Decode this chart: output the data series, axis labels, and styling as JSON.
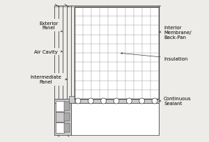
{
  "bg_color": "#eeece8",
  "line_color": "#3a3a3a",
  "grid_color": "#999999",
  "white": "#ffffff",
  "gray_light": "#cccccc",
  "gray_med": "#aaaaaa",
  "labels": {
    "exterior_panel": "Exterior\nPanel",
    "air_cavity": "Air Cavity",
    "intermediate_panel": "Intermediate\nPanel",
    "interior_membrane": "Interior\nMembrane/\nBack-Pan",
    "insulation": "Insulation",
    "continuous_sealant": "Continuous\nSealant"
  },
  "font_size": 5.0,
  "lw_main": 0.7,
  "lw_thin": 0.4,
  "arrow_lw": 0.5,
  "arrow_ms": 4
}
